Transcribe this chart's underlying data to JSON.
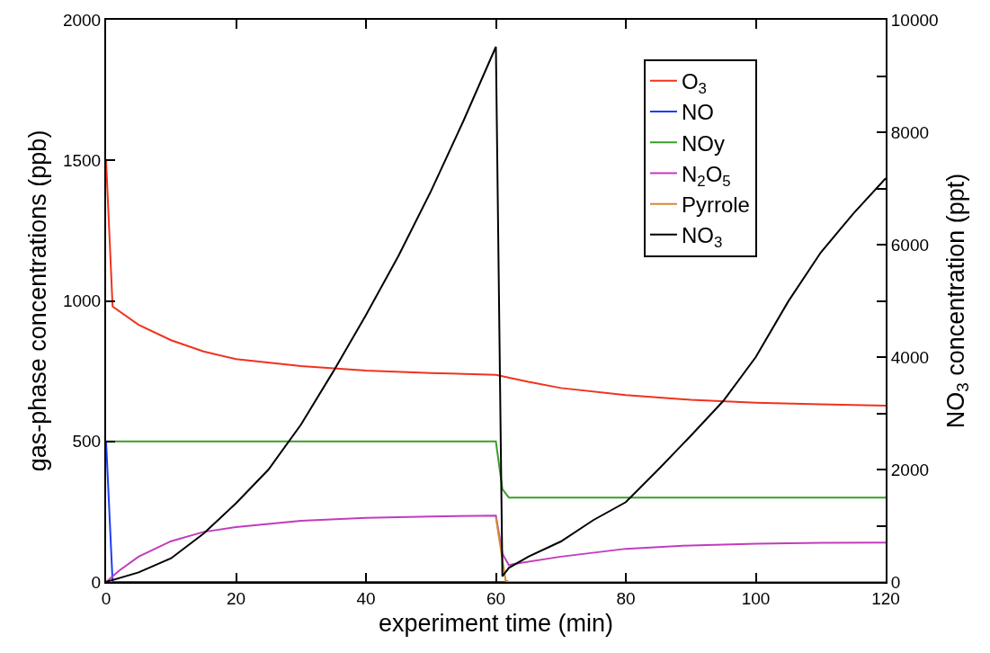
{
  "chart_data": {
    "type": "line",
    "xlabel": "experiment time (min)",
    "ylabel": "gas-phase concentrations (ppb)",
    "y2label": "NO$_{3}$ concentration (ppt)",
    "xlim": [
      0,
      120
    ],
    "xticks": [
      0,
      20,
      40,
      60,
      80,
      100,
      120
    ],
    "ylim": [
      0,
      2000
    ],
    "yticks": [
      0,
      500,
      1000,
      1500,
      2000
    ],
    "y2lim": [
      0,
      10000
    ],
    "y2ticks": [
      0,
      {
        "value": 1000,
        "label": null
      },
      2000,
      {
        "value": 3000,
        "label": null
      },
      4000,
      {
        "value": 5000,
        "label": null
      },
      6000,
      {
        "value": 7000,
        "label": null
      },
      8000,
      {
        "value": 9000,
        "label": null
      },
      10000
    ],
    "grid": false,
    "legend": "top right",
    "marker": "none",
    "line_style": "solid",
    "series": [
      {
        "name": "O$_{3}$",
        "color": "#f0321e",
        "x": [
          0,
          1,
          5,
          10,
          15,
          20,
          30,
          40,
          50,
          60,
          65,
          70,
          80,
          90,
          100,
          110,
          120
        ],
        "values": [
          1500,
          980,
          915,
          860,
          820,
          793,
          768,
          752,
          743,
          737,
          712,
          690,
          665,
          648,
          638,
          632,
          627
        ]
      },
      {
        "name": "NO",
        "color": "#1e3cf5",
        "x": [
          0,
          1,
          120
        ],
        "values": [
          500,
          0,
          0
        ]
      },
      {
        "name": "NOy",
        "color": "#3c9c2d",
        "x": [
          0,
          60,
          61,
          62,
          120
        ],
        "values": [
          500,
          500,
          330,
          300,
          300
        ]
      },
      {
        "name": "N$_{2}$O$_{5}$",
        "color": "#c23cbe",
        "x": [
          0,
          2,
          5,
          10,
          15,
          20,
          30,
          40,
          50,
          60,
          61,
          62,
          63,
          70,
          80,
          90,
          100,
          110,
          120
        ],
        "values": [
          0,
          40,
          90,
          145,
          178,
          195,
          218,
          228,
          233,
          236,
          100,
          60,
          65,
          90,
          118,
          130,
          136,
          139,
          140
        ]
      },
      {
        "name": "Pyrrole",
        "color": "#d08c32",
        "x": [
          60,
          61.5,
          62,
          120
        ],
        "values": [
          230,
          5,
          0,
          0
        ]
      },
      {
        "name": "NO$_{3}$",
        "color": "#000000",
        "axis": "y2",
        "x": [
          0,
          5,
          10,
          15,
          20,
          25,
          30,
          35,
          40,
          45,
          50,
          55,
          60,
          61,
          62,
          65,
          70,
          75,
          80,
          85,
          90,
          95,
          100,
          105,
          110,
          115,
          120
        ],
        "values": [
          0,
          170,
          420,
          860,
          1400,
          2000,
          2800,
          3750,
          4750,
          5800,
          6950,
          8200,
          9520,
          100,
          250,
          450,
          720,
          1100,
          1420,
          2000,
          2600,
          3220,
          4000,
          4990,
          5860,
          6550,
          7180
        ]
      }
    ]
  }
}
